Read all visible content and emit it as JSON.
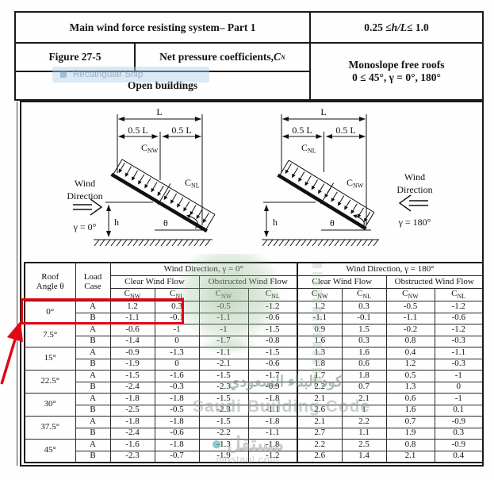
{
  "header": {
    "title": "Main wind force resisting system– Part 1",
    "h_over_l_prefix": "0.25 ≤ ",
    "h_over_l_var": "h/L",
    "h_over_l_suffix": " ≤ 1.0",
    "figure_label": "Figure 27-5",
    "coeff_title_prefix": "Net pressure coefficients, ",
    "coeff_c": "C",
    "coeff_sub": "N",
    "roof_type": "Monoslope free roofs",
    "building_type": "Open buildings",
    "angle_range": "0 ≤ 45°, γ = 0°, 180°"
  },
  "snip_artifact": {
    "label": "Rectangular Snip"
  },
  "diagram_left": {
    "dim_l": "L",
    "dim_half_left": "0.5 L",
    "dim_half_right": "0.5 L",
    "coeff_upper_c": "C",
    "coeff_upper_sub": "NW",
    "coeff_lower_c": "C",
    "coeff_lower_sub": "NL",
    "wind_line1": "Wind",
    "wind_line2": "Direction",
    "gamma": "γ = 0°",
    "height_label": "h",
    "angle_label": "θ"
  },
  "diagram_right": {
    "dim_l": "L",
    "dim_half_left": "0.5 L",
    "dim_half_right": "0.5 L",
    "coeff_upper_c": "C",
    "coeff_upper_sub": "NL",
    "coeff_lower_c": "C",
    "coeff_lower_sub": "NW",
    "wind_line1": "Wind",
    "wind_line2": "Direction",
    "gamma": "γ = 180°",
    "height_label": "h",
    "angle_label": "θ"
  },
  "table": {
    "col_roof_angle_line1": "Roof",
    "col_roof_angle_line2": "Angle θ",
    "col_load_case_line1": "Load",
    "col_load_case_line2": "Case",
    "wind_dir_0": "Wind Direction, γ = 0°",
    "wind_dir_180": "Wind Direction, γ = 180°",
    "clear_flow": "Clear Wind Flow",
    "obstructed_flow": "Obstructed Wind Flow",
    "coeff_c": "C",
    "sub_nw": "NW",
    "sub_nl": "NL",
    "load_case_a": "A",
    "load_case_b": "B",
    "groups": [
      {
        "angle": "0°",
        "a": [
          "1.2",
          "0.3",
          "-0.5",
          "-1.2",
          "1.2",
          "0.3",
          "-0.5",
          "-1.2"
        ],
        "b": [
          "-1.1",
          "-0.1",
          "-1.1",
          "-0.6",
          "-1.1",
          "-0.1",
          "-1.1",
          "-0.6"
        ]
      },
      {
        "angle": "7.5°",
        "a": [
          "-0.6",
          "-1",
          "-1",
          "-1.5",
          "0.9",
          "1.5",
          "-0.2",
          "-1.2"
        ],
        "b": [
          "-1.4",
          "0",
          "-1.7",
          "-0.8",
          "1.6",
          "0.3",
          "0.8",
          "-0.3"
        ]
      },
      {
        "angle": "15°",
        "a": [
          "-0.9",
          "-1.3",
          "-1.1",
          "-1.5",
          "1.3",
          "1.6",
          "0.4",
          "-1.1"
        ],
        "b": [
          "-1.9",
          "0",
          "-2.1",
          "-0.6",
          "1.8",
          "0.6",
          "1.2",
          "-0.3"
        ]
      },
      {
        "angle": "22.5°",
        "a": [
          "-1.5",
          "-1.6",
          "-1.5",
          "-1.7",
          "1.7",
          "1.8",
          "0.5",
          "-1"
        ],
        "b": [
          "-2.4",
          "-0.3",
          "-2.3",
          "-0.9",
          "2.2",
          "0.7",
          "1.3",
          "0"
        ]
      },
      {
        "angle": "30°",
        "a": [
          "-1.8",
          "-1.8",
          "-1.5",
          "-1.8",
          "2.1",
          "2.1",
          "0.6",
          "-1"
        ],
        "b": [
          "-2.5",
          "-0.5",
          "-2.3",
          "-1.1",
          "2.6",
          "1",
          "1.6",
          "0.1"
        ]
      },
      {
        "angle": "37.5°",
        "a": [
          "-1.8",
          "-1.8",
          "-1.5",
          "-1.8",
          "2.1",
          "2.2",
          "0.7",
          "-0.9"
        ],
        "b": [
          "-2.4",
          "-0.6",
          "-2.2",
          "-1.1",
          "2.7",
          "1.1",
          "1.9",
          "0.3"
        ]
      },
      {
        "angle": "45°",
        "a": [
          "-1.6",
          "-1.8",
          "-1.3",
          "-1.8",
          "2.2",
          "2.5",
          "0.8",
          "-0.9"
        ],
        "b": [
          "-2.3",
          "-0.7",
          "-1.9",
          "-1.2",
          "2.6",
          "1.4",
          "2.1",
          "0.4"
        ]
      }
    ]
  },
  "watermarks": {
    "arabic_line": "كود البناء السعودي",
    "english_line": "Saudi Building Code",
    "mostaql_logo": "مستقل",
    "mostaql_url": "mostaql.com"
  },
  "annotation": {
    "color": "#e30613"
  }
}
